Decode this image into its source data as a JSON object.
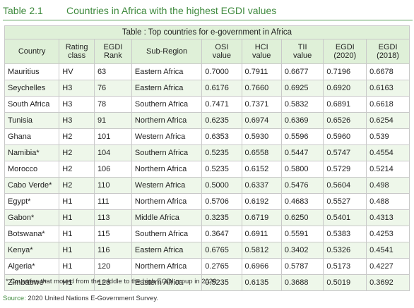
{
  "caption": {
    "label": "Table 2.1",
    "title": "Countries in Africa with the highest EGDI values"
  },
  "table": {
    "title": "Table : Top countries for e-government in Africa",
    "headers": [
      [
        "Country"
      ],
      [
        "Rating",
        "class"
      ],
      [
        "EGDI",
        "Rank"
      ],
      [
        "Sub-Region"
      ],
      [
        "OSI",
        "value"
      ],
      [
        "HCI",
        "value"
      ],
      [
        "TII",
        "value"
      ],
      [
        "EGDI",
        "(2020)"
      ],
      [
        "EGDI",
        "(2018)"
      ]
    ],
    "rows": [
      [
        "Mauritius",
        "HV",
        "63",
        "Eastern Africa",
        "0.7000",
        "0.7911",
        "0.6677",
        "0.7196",
        "0.6678"
      ],
      [
        "Seychelles",
        "H3",
        "76",
        "Eastern Africa",
        "0.6176",
        "0.7660",
        "0.6925",
        "0.6920",
        "0.6163"
      ],
      [
        "South Africa",
        "H3",
        "78",
        "Southern Africa",
        "0.7471",
        "0.7371",
        "0.5832",
        "0.6891",
        "0.6618"
      ],
      [
        "Tunisia",
        "H3",
        "91",
        "Northern Africa",
        "0.6235",
        "0.6974",
        "0.6369",
        "0.6526",
        "0.6254"
      ],
      [
        "Ghana",
        "H2",
        "101",
        "Western Africa",
        "0.6353",
        "0.5930",
        "0.5596",
        "0.5960",
        "0.539"
      ],
      [
        "Namibia*",
        "H2",
        "104",
        "Southern Africa",
        "0.5235",
        "0.6558",
        "0.5447",
        "0.5747",
        "0.4554"
      ],
      [
        "Morocco",
        "H2",
        "106",
        "Northern Africa",
        "0.5235",
        "0.6152",
        "0.5800",
        "0.5729",
        "0.5214"
      ],
      [
        "Cabo Verde*",
        "H2",
        "110",
        "Western Africa",
        "0.5000",
        "0.6337",
        "0.5476",
        "0.5604",
        "0.498"
      ],
      [
        "Egypt*",
        "H1",
        "111",
        "Northern Africa",
        "0.5706",
        "0.6192",
        "0.4683",
        "0.5527",
        "0.488"
      ],
      [
        "Gabon*",
        "H1",
        "113",
        "Middle Africa",
        "0.3235",
        "0.6719",
        "0.6250",
        "0.5401",
        "0.4313"
      ],
      [
        "Botswana*",
        "H1",
        "115",
        "Southern Africa",
        "0.3647",
        "0.6911",
        "0.5591",
        "0.5383",
        "0.4253"
      ],
      [
        "Kenya*",
        "H1",
        "116",
        "Eastern Africa",
        "0.6765",
        "0.5812",
        "0.3402",
        "0.5326",
        "0.4541"
      ],
      [
        "Algeria*",
        "H1",
        "120",
        "Northern Africa",
        "0.2765",
        "0.6966",
        "0.5787",
        "0.5173",
        "0.4227"
      ],
      [
        "Zimbabwe*",
        "H1",
        "126",
        "Eastern Africa",
        "0.5235",
        "0.6135",
        "0.3688",
        "0.5019",
        "0.3692"
      ]
    ]
  },
  "footnote": "* Countries that moved from the middle to the high EGDI group in 2020.",
  "source": {
    "label": "Source:",
    "text": "2020 United Nations E-Government Survey."
  },
  "colors": {
    "accent": "#3f8a3e",
    "header_fill": "#dff0d8",
    "stripe_fill": "#eef7ea"
  }
}
